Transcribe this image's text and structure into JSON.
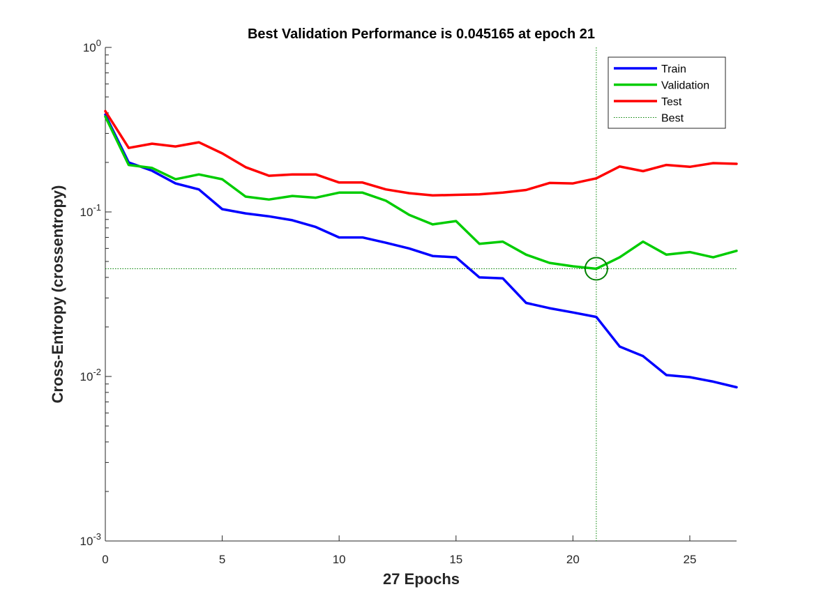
{
  "chart_data": {
    "type": "line",
    "title": "Best Validation Performance is 0.045165 at epoch 21",
    "xlabel": "27 Epochs",
    "ylabel": "Cross-Entropy  (crossentropy)",
    "xlim": [
      0,
      27
    ],
    "ylim": [
      0.001,
      1
    ],
    "yscale": "log",
    "x_ticks": [
      0,
      5,
      10,
      15,
      20,
      25
    ],
    "y_ticks": [
      {
        "value": 0.001,
        "base": "10",
        "exp": "-3"
      },
      {
        "value": 0.01,
        "base": "10",
        "exp": "-2"
      },
      {
        "value": 0.1,
        "base": "10",
        "exp": "-1"
      },
      {
        "value": 1,
        "base": "10",
        "exp": "0"
      }
    ],
    "grid": false,
    "legend_position": "top-right",
    "x": [
      0,
      1,
      2,
      3,
      4,
      5,
      6,
      7,
      8,
      9,
      10,
      11,
      12,
      13,
      14,
      15,
      16,
      17,
      18,
      19,
      20,
      21,
      22,
      23,
      24,
      25,
      26,
      27
    ],
    "series": [
      {
        "name": "Train",
        "color": "#0000ff",
        "values": [
          0.39,
          0.2,
          0.178,
          0.149,
          0.137,
          0.104,
          0.098,
          0.094,
          0.089,
          0.081,
          0.07,
          0.07,
          0.065,
          0.06,
          0.054,
          0.053,
          0.04,
          0.0395,
          0.028,
          0.026,
          0.0245,
          0.023,
          0.0152,
          0.0133,
          0.0102,
          0.0099,
          0.0093,
          0.0086
        ]
      },
      {
        "name": "Validation",
        "color": "#00cc00",
        "values": [
          0.38,
          0.193,
          0.185,
          0.158,
          0.169,
          0.158,
          0.124,
          0.119,
          0.125,
          0.122,
          0.131,
          0.131,
          0.117,
          0.096,
          0.084,
          0.088,
          0.064,
          0.066,
          0.055,
          0.049,
          0.0467,
          0.045165,
          0.053,
          0.066,
          0.055,
          0.057,
          0.053,
          0.058
        ]
      },
      {
        "name": "Test",
        "color": "#ff0000",
        "values": [
          0.41,
          0.245,
          0.26,
          0.25,
          0.265,
          0.227,
          0.187,
          0.166,
          0.169,
          0.169,
          0.151,
          0.151,
          0.137,
          0.13,
          0.126,
          0.127,
          0.128,
          0.131,
          0.136,
          0.15,
          0.149,
          0.16,
          0.189,
          0.177,
          0.193,
          0.188,
          0.198,
          0.196
        ]
      }
    ],
    "best": {
      "name": "Best",
      "epoch": 21,
      "value": 0.045165,
      "color": "#008000"
    }
  }
}
